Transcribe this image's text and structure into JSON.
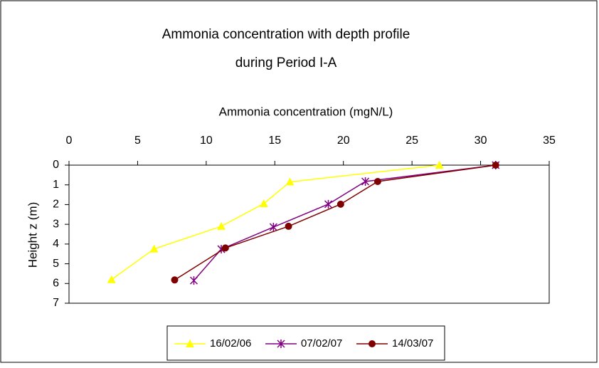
{
  "chart_data": {
    "type": "line",
    "title": [
      "Ammonia concentration with depth profile",
      "during Period I-A"
    ],
    "x_label": "Ammonia concentration (mgN/L)",
    "y_label": "Height z (m)",
    "xlim": [
      0,
      35
    ],
    "xticks": [
      0,
      5,
      10,
      15,
      20,
      25,
      30,
      35
    ],
    "ylim": [
      0,
      7
    ],
    "yticks": [
      0,
      1,
      2,
      3,
      4,
      5,
      6,
      7
    ],
    "y_inverted": true,
    "x_axis_position": "top",
    "legend": "bottom",
    "series": [
      {
        "name": "16/02/06",
        "color": "#ffff00",
        "marker": "triangle",
        "x": [
          27,
          16.1,
          14.2,
          11.1,
          6.2,
          3.1
        ],
        "values": [
          0,
          0.85,
          1.95,
          3.1,
          4.25,
          5.8
        ]
      },
      {
        "name": "07/02/07",
        "color": "#800080",
        "marker": "asterisk",
        "x": [
          31.1,
          21.6,
          18.9,
          14.9,
          11.1,
          9.1
        ],
        "values": [
          0,
          0.83,
          1.98,
          3.14,
          4.26,
          5.85
        ]
      },
      {
        "name": "14/03/07",
        "color": "#800000",
        "marker": "circle",
        "x": [
          31.1,
          22.5,
          19.8,
          16.0,
          11.4,
          7.7
        ],
        "values": [
          0,
          0.83,
          1.98,
          3.1,
          4.2,
          5.82
        ]
      }
    ]
  }
}
